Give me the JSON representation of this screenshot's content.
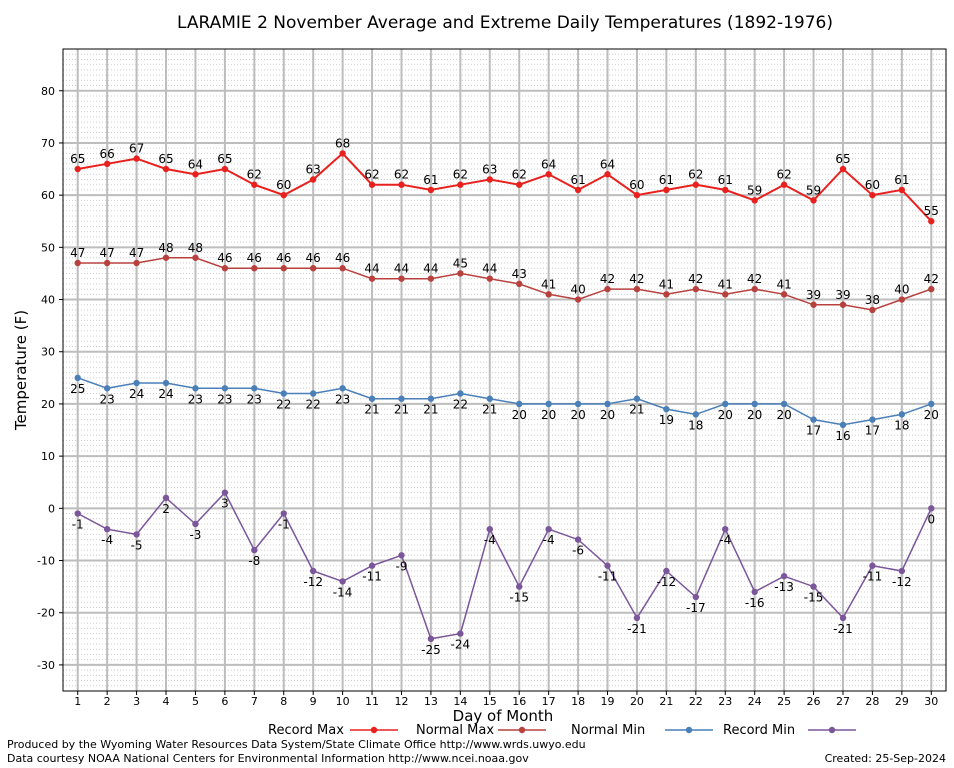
{
  "chart_data": {
    "type": "line",
    "title": "LARAMIE 2 November Average and Extreme Daily Temperatures (1892-1976)",
    "xlabel": "Day of Month",
    "ylabel": "Temperature (F)",
    "ylim": [
      -35,
      88
    ],
    "xlim": [
      0.5,
      30.5
    ],
    "yticks": [
      -30,
      -20,
      -10,
      0,
      10,
      20,
      30,
      40,
      50,
      60,
      70,
      80
    ],
    "grid": true,
    "legend_position": "bottom",
    "x": [
      1,
      2,
      3,
      4,
      5,
      6,
      7,
      8,
      9,
      10,
      11,
      12,
      13,
      14,
      15,
      16,
      17,
      18,
      19,
      20,
      21,
      22,
      23,
      24,
      25,
      26,
      27,
      28,
      29,
      30
    ],
    "series": [
      {
        "name": "Record Max",
        "color": "#e8211e",
        "values": [
          65,
          66,
          67,
          65,
          64,
          65,
          62,
          60,
          63,
          68,
          62,
          62,
          61,
          62,
          63,
          62,
          64,
          61,
          64,
          60,
          61,
          62,
          61,
          59,
          62,
          59,
          65,
          60,
          61,
          55
        ]
      },
      {
        "name": "Normal Max",
        "color": "#b8413e",
        "values": [
          47,
          47,
          47,
          48,
          48,
          46,
          46,
          46,
          46,
          46,
          44,
          44,
          44,
          45,
          44,
          43,
          41,
          40,
          42,
          42,
          41,
          42,
          41,
          42,
          41,
          39,
          39,
          38,
          40,
          42
        ]
      },
      {
        "name": "Normal Min",
        "color": "#4a7fb8",
        "values": [
          25,
          23,
          24,
          24,
          23,
          23,
          23,
          22,
          22,
          23,
          21,
          21,
          21,
          22,
          21,
          20,
          20,
          20,
          20,
          21,
          19,
          18,
          20,
          20,
          20,
          17,
          16,
          17,
          18,
          20
        ]
      },
      {
        "name": "Record Min",
        "color": "#7b569b",
        "values": [
          -1,
          -4,
          -5,
          2,
          -3,
          3,
          -8,
          -1,
          -12,
          -14,
          -11,
          -9,
          -25,
          -24,
          -4,
          -15,
          -4,
          -6,
          -11,
          -21,
          -12,
          -17,
          -4,
          -16,
          -13,
          -15,
          -21,
          -11,
          -12,
          0
        ]
      }
    ]
  },
  "footer": {
    "produced_by": "Produced by the Wyoming Water Resources Data System/State Climate Office http://www.wrds.uwyo.edu",
    "data_courtesy": "Data courtesy NOAA National Centers for Environmental Information http://www.ncei.noaa.gov",
    "created": "Created: 25-Sep-2024"
  }
}
